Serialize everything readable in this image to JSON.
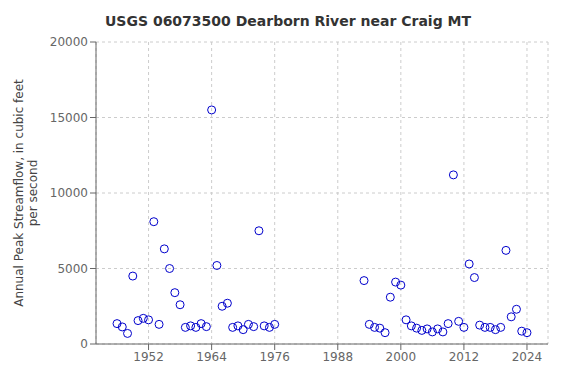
{
  "chart_data": {
    "type": "scatter",
    "title": "USGS 06073500 Dearborn River near Craig MT",
    "ylabel": "Annual Peak Streamflow, in cubic feet\nper second",
    "x": [
      1946,
      1947,
      1948,
      1949,
      1950,
      1951,
      1952,
      1953,
      1954,
      1955,
      1956,
      1957,
      1958,
      1959,
      1960,
      1961,
      1962,
      1963,
      1964,
      1965,
      1966,
      1967,
      1968,
      1969,
      1970,
      1971,
      1972,
      1973,
      1974,
      1975,
      1976,
      1993,
      1994,
      1995,
      1996,
      1997,
      1998,
      1999,
      2000,
      2001,
      2002,
      2003,
      2004,
      2005,
      2006,
      2007,
      2008,
      2009,
      2010,
      2011,
      2012,
      2013,
      2014,
      2015,
      2016,
      2017,
      2018,
      2019,
      2020,
      2021,
      2022,
      2023,
      2024
    ],
    "values": [
      1350,
      1130,
      700,
      4500,
      1550,
      1700,
      1600,
      8100,
      1300,
      6300,
      5000,
      3400,
      2600,
      1100,
      1200,
      1100,
      1350,
      1150,
      15500,
      5200,
      2500,
      2700,
      1100,
      1200,
      950,
      1300,
      1150,
      7500,
      1200,
      1100,
      1300,
      4200,
      1300,
      1100,
      1050,
      750,
      3100,
      4100,
      3900,
      1600,
      1200,
      1050,
      900,
      1000,
      800,
      1000,
      800,
      1350,
      11200,
      1500,
      1100,
      5300,
      4400,
      1250,
      1100,
      1100,
      950,
      1100,
      6200,
      1800,
      2300,
      850,
      750
    ],
    "color": "#0000cc",
    "marker": "circle",
    "xlim": [
      1942,
      2028
    ],
    "ylim": [
      0,
      20000
    ],
    "xticks": [
      1952,
      1964,
      1976,
      1988,
      2000,
      2012,
      2024
    ],
    "yticks": [
      0,
      5000,
      10000,
      15000,
      20000
    ],
    "grid": true
  }
}
